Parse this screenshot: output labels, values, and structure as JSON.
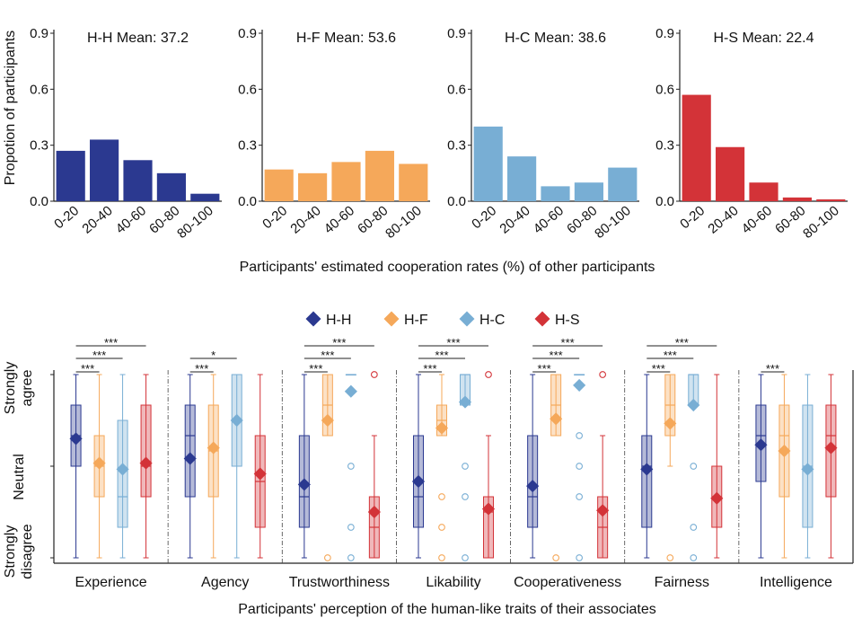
{
  "colors": {
    "H-H": "#2b3990",
    "H-F": "#f5a85a",
    "H-C": "#78aed4",
    "H-S": "#d33338"
  },
  "chart_data": [
    {
      "type": "bar",
      "ylabel": "Propotion of participants",
      "shared_xlabel": "Participants' estimated cooperation rates (%) of other participants",
      "categories": [
        "0-20",
        "20-40",
        "40-60",
        "60-80",
        "80-100"
      ],
      "yticks": [
        "0.0",
        "0.3",
        "0.6",
        "0.9"
      ],
      "ylim": [
        0,
        0.9
      ],
      "panels": [
        {
          "name": "H-H",
          "title": "H-H  Mean: 37.2",
          "values": [
            0.27,
            0.33,
            0.22,
            0.15,
            0.04
          ]
        },
        {
          "name": "H-F",
          "title": "H-F  Mean: 53.6",
          "values": [
            0.17,
            0.15,
            0.21,
            0.27,
            0.2
          ]
        },
        {
          "name": "H-C",
          "title": "H-C  Mean: 38.6",
          "values": [
            0.4,
            0.24,
            0.08,
            0.1,
            0.18
          ]
        },
        {
          "name": "H-S",
          "title": "H-S  Mean: 22.4",
          "values": [
            0.57,
            0.29,
            0.1,
            0.02,
            0.01
          ]
        }
      ]
    },
    {
      "type": "box",
      "xlabel": "Participants' perception of the human-like traits of their associates",
      "ylabels": [
        "Strongly agree",
        "Neutral",
        "Strongly disagree"
      ],
      "legend": [
        "H-H",
        "H-F",
        "H-C",
        "H-S"
      ],
      "ylim": [
        -3,
        3
      ],
      "categories": [
        {
          "name": "Experience",
          "groups": [
            {
              "g": "H-H",
              "min": -3,
              "q1": 0,
              "med": 1,
              "q3": 2,
              "max": 3,
              "mean": 0.9,
              "out": []
            },
            {
              "g": "H-F",
              "min": -3,
              "q1": -1,
              "med": 0,
              "q3": 1,
              "max": 3,
              "mean": 0.1,
              "out": []
            },
            {
              "g": "H-C",
              "min": -3,
              "q1": -2,
              "med": -1,
              "q3": 1.5,
              "max": 3,
              "mean": -0.1,
              "out": []
            },
            {
              "g": "H-S",
              "min": -3,
              "q1": -1,
              "med": 0,
              "q3": 2,
              "max": 3,
              "mean": 0.1,
              "out": []
            }
          ],
          "sig": [
            "***",
            "***",
            "***"
          ]
        },
        {
          "name": "Agency",
          "groups": [
            {
              "g": "H-H",
              "min": -3,
              "q1": -1,
              "med": 1,
              "q3": 2,
              "max": 3,
              "mean": 0.25,
              "out": []
            },
            {
              "g": "H-F",
              "min": -3,
              "q1": -1,
              "med": 0.5,
              "q3": 2,
              "max": 3,
              "mean": 0.6,
              "out": []
            },
            {
              "g": "H-C",
              "min": -3,
              "q1": 0,
              "med": 1.5,
              "q3": 3,
              "max": 3,
              "mean": 1.5,
              "out": []
            },
            {
              "g": "H-S",
              "min": -3,
              "q1": -2,
              "med": -0.5,
              "q3": 1,
              "max": 3,
              "mean": -0.25,
              "out": []
            }
          ],
          "sig": [
            "***",
            "*"
          ]
        },
        {
          "name": "Trustworthiness",
          "groups": [
            {
              "g": "H-H",
              "min": -3,
              "q1": -2,
              "med": -1,
              "q3": 1,
              "max": 3,
              "mean": -0.6,
              "out": []
            },
            {
              "g": "H-F",
              "min": 1,
              "q1": 1,
              "med": 2,
              "q3": 3,
              "max": 3,
              "mean": 1.5,
              "out": [
                -3
              ]
            },
            {
              "g": "H-C",
              "min": 3,
              "q1": 3,
              "med": 3,
              "q3": 3,
              "max": 3,
              "mean": 2.45,
              "out": [
                0,
                -2,
                -3
              ]
            },
            {
              "g": "H-S",
              "min": -3,
              "q1": -3,
              "med": -2,
              "q3": -1,
              "max": 1,
              "mean": -1.5,
              "out": [
                3
              ]
            }
          ],
          "sig": [
            "***",
            "***",
            "***"
          ]
        },
        {
          "name": "Likability",
          "groups": [
            {
              "g": "H-H",
              "min": -3,
              "q1": -2,
              "med": -1,
              "q3": 1,
              "max": 3,
              "mean": -0.5,
              "out": []
            },
            {
              "g": "H-F",
              "min": 1,
              "q1": 1,
              "med": 1.5,
              "q3": 2,
              "max": 3,
              "mean": 1.25,
              "out": [
                -1,
                -2,
                -3
              ]
            },
            {
              "g": "H-C",
              "min": 2,
              "q1": 2,
              "med": 3,
              "q3": 3,
              "max": 3,
              "mean": 2.1,
              "out": [
                0,
                -1,
                -3
              ]
            },
            {
              "g": "H-S",
              "min": -3,
              "q1": -3,
              "med": -1.5,
              "q3": -1,
              "max": 1,
              "mean": -1.4,
              "out": [
                3
              ]
            }
          ],
          "sig": [
            "***",
            "***",
            "***"
          ]
        },
        {
          "name": "Cooperativeness",
          "groups": [
            {
              "g": "H-H",
              "min": -3,
              "q1": -2,
              "med": -1,
              "q3": 1,
              "max": 3,
              "mean": -0.65,
              "out": []
            },
            {
              "g": "H-F",
              "min": 1,
              "q1": 1,
              "med": 2,
              "q3": 3,
              "max": 3,
              "mean": 1.55,
              "out": [
                -3
              ]
            },
            {
              "g": "H-C",
              "min": 3,
              "q1": 3,
              "med": 3,
              "q3": 3,
              "max": 3,
              "mean": 2.65,
              "out": [
                1,
                0,
                -1,
                -3
              ]
            },
            {
              "g": "H-S",
              "min": -3,
              "q1": -3,
              "med": -2,
              "q3": -1,
              "max": 1,
              "mean": -1.45,
              "out": [
                3
              ]
            }
          ],
          "sig": [
            "***",
            "***",
            "***"
          ]
        },
        {
          "name": "Fairness",
          "groups": [
            {
              "g": "H-H",
              "min": -3,
              "q1": -2,
              "med": 0,
              "q3": 1,
              "max": 3,
              "mean": -0.1,
              "out": []
            },
            {
              "g": "H-F",
              "min": 0,
              "q1": 1,
              "med": 2,
              "q3": 3,
              "max": 3,
              "mean": 1.4,
              "out": [
                -3
              ]
            },
            {
              "g": "H-C",
              "min": 2,
              "q1": 2,
              "med": 3,
              "q3": 3,
              "max": 3,
              "mean": 2.0,
              "out": [
                0,
                -2,
                -3
              ]
            },
            {
              "g": "H-S",
              "min": -3,
              "q1": -2,
              "med": -1,
              "q3": 0,
              "max": 3,
              "mean": -1.05,
              "out": []
            }
          ],
          "sig": [
            "***",
            "***",
            "***"
          ]
        },
        {
          "name": "Intelligence",
          "groups": [
            {
              "g": "H-H",
              "min": -3,
              "q1": -0.5,
              "med": 1,
              "q3": 2,
              "max": 3,
              "mean": 0.7,
              "out": []
            },
            {
              "g": "H-F",
              "min": -3,
              "q1": -1,
              "med": 1,
              "q3": 2,
              "max": 3,
              "mean": 0.5,
              "out": []
            },
            {
              "g": "H-C",
              "min": -3,
              "q1": -2,
              "med": 0,
              "q3": 2,
              "max": 3,
              "mean": -0.1,
              "out": []
            },
            {
              "g": "H-S",
              "min": -3,
              "q1": -1,
              "med": 1,
              "q3": 2,
              "max": 3,
              "mean": 0.6,
              "out": []
            }
          ],
          "sig": [
            "***"
          ]
        }
      ]
    }
  ]
}
